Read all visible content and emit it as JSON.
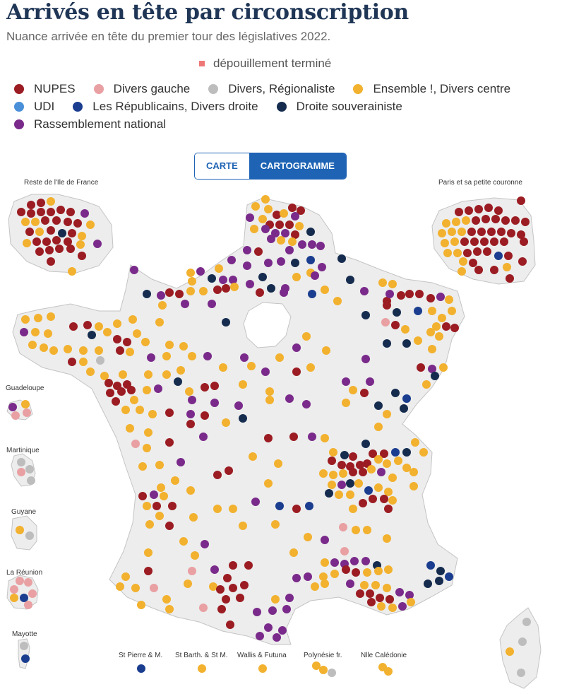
{
  "title": "Arrivés en tête par circonscription",
  "subtitle": "Nuance arrivée en tête du premier tour des législatives 2022.",
  "note": {
    "label": "dépouillement terminé",
    "color": "#ee7777"
  },
  "legend": [
    {
      "label": "NUPES",
      "color": "#9b1c22"
    },
    {
      "label": "Divers gauche",
      "color": "#e9a0a3"
    },
    {
      "label": "Divers, Régionaliste",
      "color": "#bdbdbd"
    },
    {
      "label": "Ensemble !, Divers centre",
      "color": "#f2b12e"
    },
    {
      "label": "UDI",
      "color": "#4a90d9"
    },
    {
      "label": "Les Républicains, Divers droite",
      "color": "#1a3d8f"
    },
    {
      "label": "Droite souverainiste",
      "color": "#152c4f"
    },
    {
      "label": "Rassemblement national",
      "color": "#7a2a8a"
    }
  ],
  "toggle": {
    "carte": "CARTE",
    "cartogramme": "CARTOGRAMME",
    "active": "CARTOGRAMME"
  },
  "labels": {
    "idf_reste": "Reste de l'Ile de France",
    "paris": "Paris et sa petite couronne",
    "guadeloupe": "Guadeloupe",
    "martinique": "Martinique",
    "guyane": "Guyane",
    "reunion": "La Réunion",
    "mayotte": "Mayotte",
    "st_pierre": "St Pierre & M.",
    "st_barth": "St Barth. & St M.",
    "wallis": "Wallis & Futuna",
    "polynesie": "Polynésie fr.",
    "caledonie": "Nlle Calédonie"
  }
}
